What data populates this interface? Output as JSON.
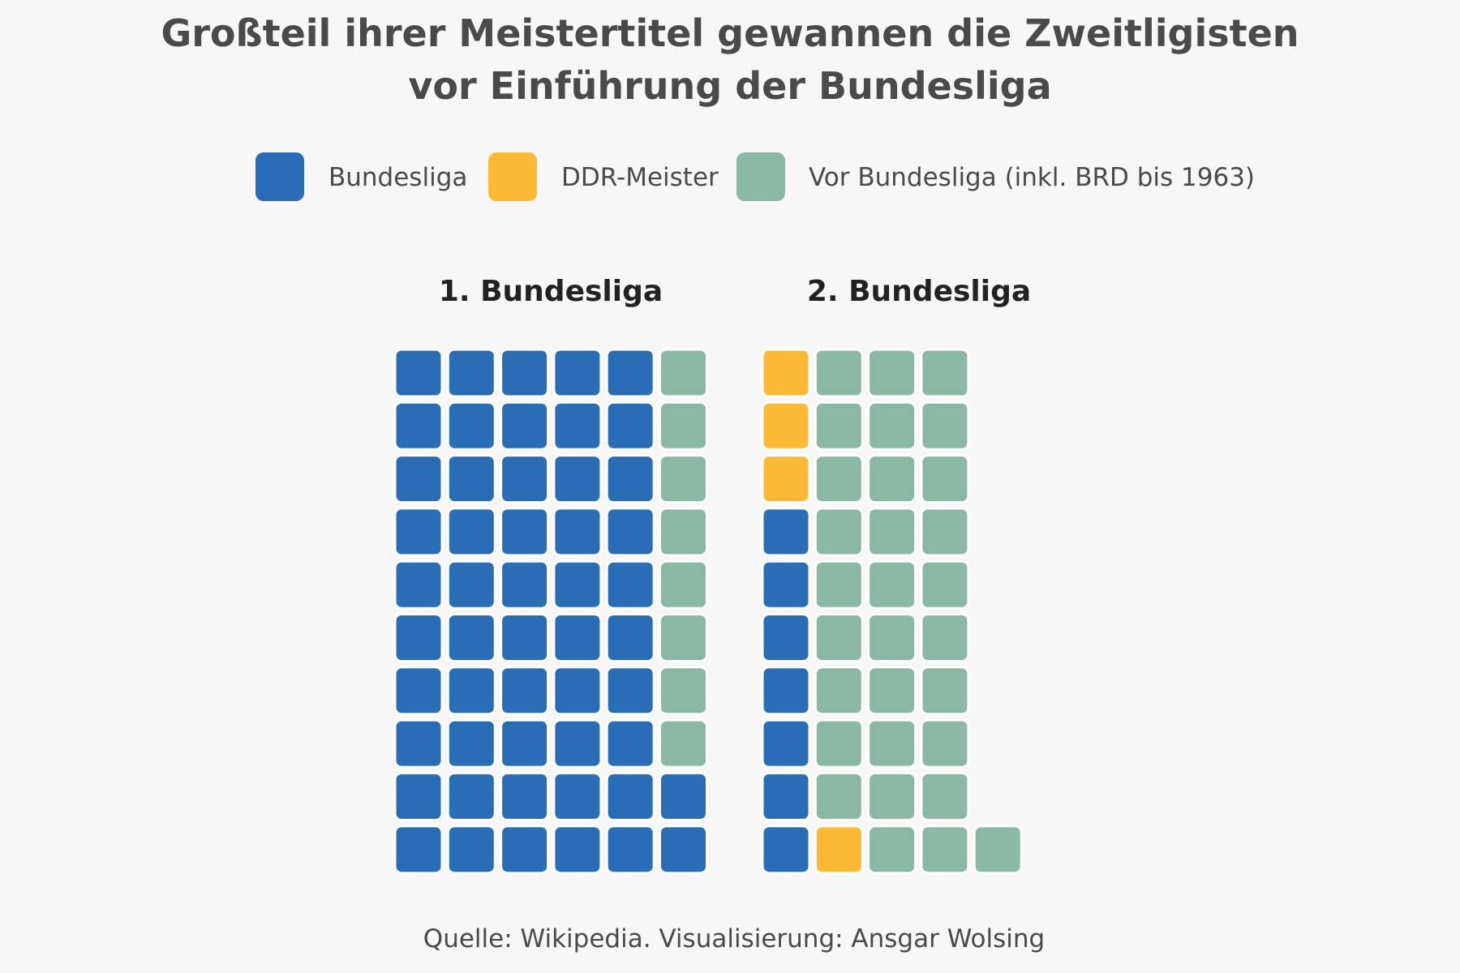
{
  "chart_data": {
    "type": "waffle",
    "title_lines": [
      "Großteil ihrer Meistertitel gewannen die Zweitligisten",
      "vor Einführung der Bundesliga"
    ],
    "legend": [
      {
        "key": "bundesliga",
        "label": "Bundesliga",
        "color": "#2a6db5"
      },
      {
        "key": "ddr",
        "label": "DDR-Meister",
        "color": "#fbb935"
      },
      {
        "key": "vor",
        "label": "Vor Bundesliga (inkl. BRD bis 1963)",
        "color": "#8bb7a5"
      }
    ],
    "panels": [
      {
        "title": "1. Bundesliga",
        "counts": {
          "bundesliga": 52,
          "ddr": 0,
          "vor": 8
        },
        "rows": [
          [
            "bundesliga",
            "bundesliga",
            "bundesliga",
            "bundesliga",
            "bundesliga",
            "vor"
          ],
          [
            "bundesliga",
            "bundesliga",
            "bundesliga",
            "bundesliga",
            "bundesliga",
            "vor"
          ],
          [
            "bundesliga",
            "bundesliga",
            "bundesliga",
            "bundesliga",
            "bundesliga",
            "vor"
          ],
          [
            "bundesliga",
            "bundesliga",
            "bundesliga",
            "bundesliga",
            "bundesliga",
            "vor"
          ],
          [
            "bundesliga",
            "bundesliga",
            "bundesliga",
            "bundesliga",
            "bundesliga",
            "vor"
          ],
          [
            "bundesliga",
            "bundesliga",
            "bundesliga",
            "bundesliga",
            "bundesliga",
            "vor"
          ],
          [
            "bundesliga",
            "bundesliga",
            "bundesliga",
            "bundesliga",
            "bundesliga",
            "vor"
          ],
          [
            "bundesliga",
            "bundesliga",
            "bundesliga",
            "bundesliga",
            "bundesliga",
            "vor"
          ],
          [
            "bundesliga",
            "bundesliga",
            "bundesliga",
            "bundesliga",
            "bundesliga",
            "bundesliga"
          ],
          [
            "bundesliga",
            "bundesliga",
            "bundesliga",
            "bundesliga",
            "bundesliga",
            "bundesliga"
          ]
        ]
      },
      {
        "title": "2. Bundesliga",
        "counts": {
          "bundesliga": 7,
          "ddr": 4,
          "vor": 30
        },
        "rows": [
          [
            "ddr",
            "vor",
            "vor",
            "vor"
          ],
          [
            "ddr",
            "vor",
            "vor",
            "vor"
          ],
          [
            "ddr",
            "vor",
            "vor",
            "vor"
          ],
          [
            "bundesliga",
            "vor",
            "vor",
            "vor"
          ],
          [
            "bundesliga",
            "vor",
            "vor",
            "vor"
          ],
          [
            "bundesliga",
            "vor",
            "vor",
            "vor"
          ],
          [
            "bundesliga",
            "vor",
            "vor",
            "vor"
          ],
          [
            "bundesliga",
            "vor",
            "vor",
            "vor"
          ],
          [
            "bundesliga",
            "vor",
            "vor",
            "vor"
          ],
          [
            "bundesliga",
            "ddr",
            "vor",
            "vor",
            "vor"
          ]
        ]
      }
    ],
    "source": "Quelle: Wikipedia. Visualisierung: Ansgar Wolsing"
  }
}
